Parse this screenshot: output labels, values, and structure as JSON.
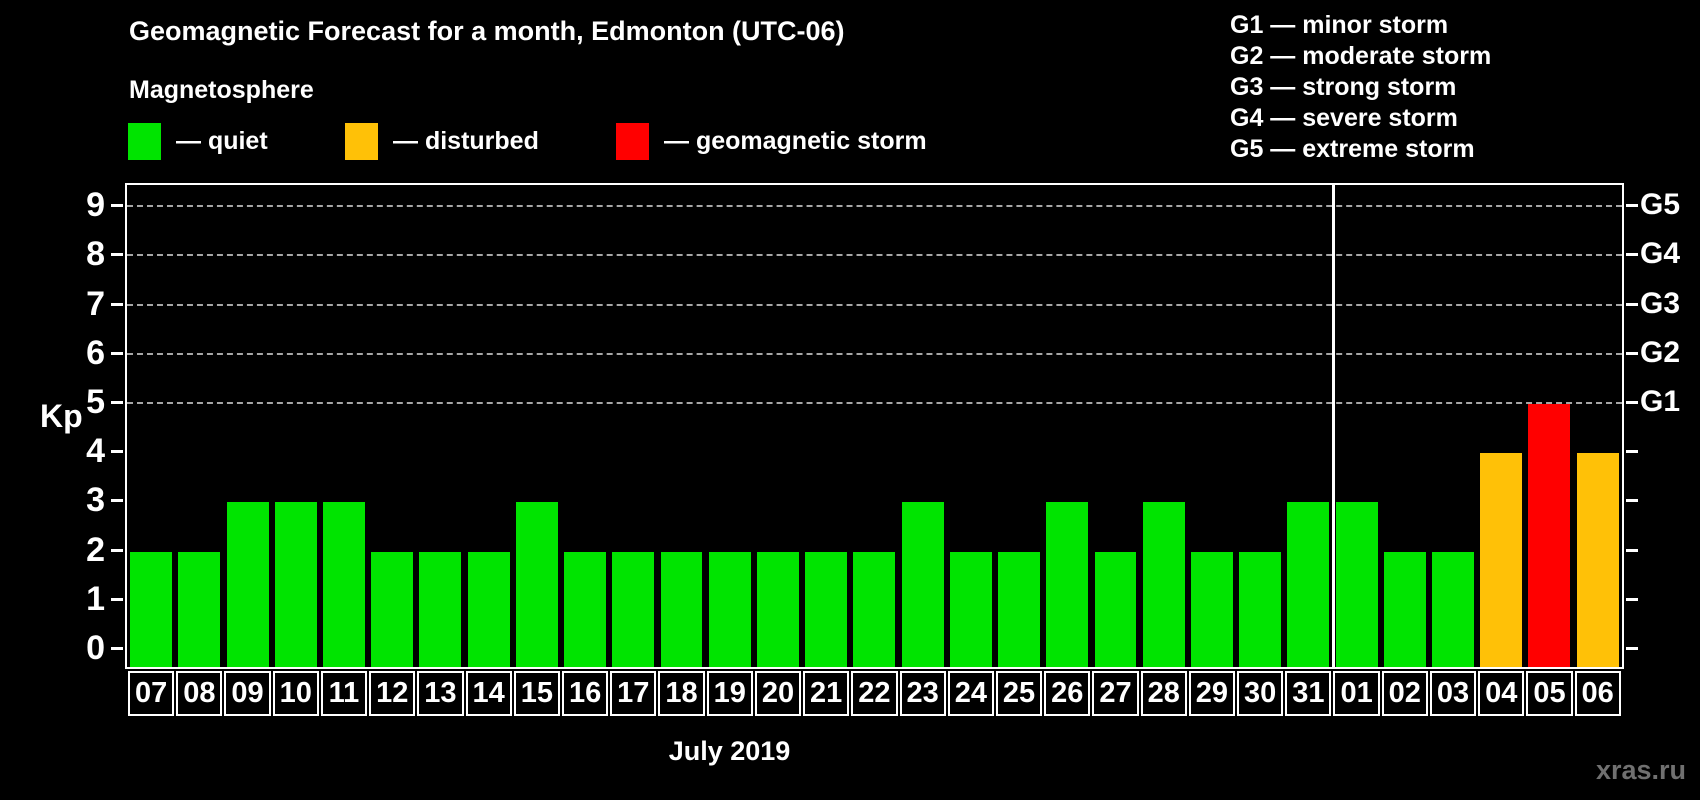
{
  "header": {
    "title": "Geomagnetic Forecast for a month, Edmonton (UTC-06)",
    "subtitle": "Magnetosphere"
  },
  "colors": {
    "quiet": "#00e400",
    "disturbed": "#ffc107",
    "storm": "#ff0000",
    "background": "#000000",
    "text": "#ffffff",
    "gridline": "#a6a6a6",
    "watermark": "#707070"
  },
  "legend": {
    "items": [
      {
        "swatch": "quiet",
        "label": "— quiet"
      },
      {
        "swatch": "disturbed",
        "label": "— disturbed"
      },
      {
        "swatch": "storm",
        "label": "— geomagnetic storm"
      }
    ]
  },
  "gscale_legend": [
    "G1 — minor storm",
    "G2 — moderate storm",
    "G3 — strong storm",
    "G4 — severe storm",
    "G5 — extreme storm"
  ],
  "chart_data": {
    "type": "bar",
    "title": "Geomagnetic Forecast for a month, Edmonton (UTC-06)",
    "ylabel": "Kp",
    "xlabel": "July 2019",
    "ylim": [
      0,
      9
    ],
    "yticks": [
      0,
      1,
      2,
      3,
      4,
      5,
      6,
      7,
      8,
      9
    ],
    "gridlines_at": [
      5,
      6,
      7,
      8,
      9
    ],
    "right_axis_labels": [
      {
        "text": "G1",
        "kp": 5
      },
      {
        "text": "G2",
        "kp": 6
      },
      {
        "text": "G3",
        "kp": 7
      },
      {
        "text": "G4",
        "kp": 8
      },
      {
        "text": "G5",
        "kp": 9
      }
    ],
    "categories": [
      "07",
      "08",
      "09",
      "10",
      "11",
      "12",
      "13",
      "14",
      "15",
      "16",
      "17",
      "18",
      "19",
      "20",
      "21",
      "22",
      "23",
      "24",
      "25",
      "26",
      "27",
      "28",
      "29",
      "30",
      "31",
      "01",
      "02",
      "03",
      "04",
      "05",
      "06"
    ],
    "values": [
      2,
      2,
      3,
      3,
      3,
      2,
      2,
      2,
      3,
      2,
      2,
      2,
      2,
      2,
      2,
      2,
      3,
      2,
      2,
      3,
      2,
      3,
      2,
      2,
      3,
      3,
      2,
      2,
      4,
      5,
      4
    ],
    "month_separator_after_index": 24,
    "color_rules": {
      "disturbed_at": 4,
      "storm_at": 5
    },
    "legend_position": "top-left",
    "grid": "dashed-horizontal-upper-half"
  },
  "watermark": "xras.ru"
}
